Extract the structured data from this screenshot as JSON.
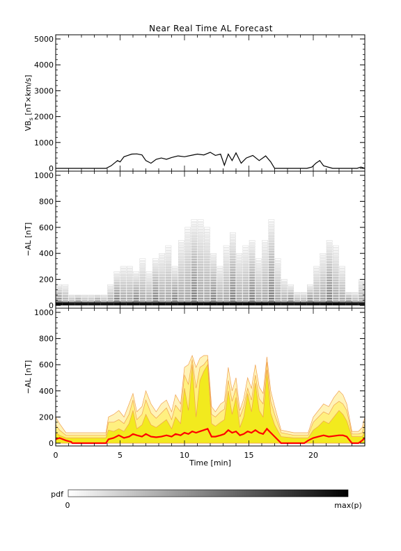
{
  "title": "Near Real Time AL Forecast",
  "chart_data": [
    {
      "type": "line",
      "ylabel_main": "VB",
      "ylabel_sub": "s",
      "ylabel_rest": " [nT×km/s]",
      "ylim": [
        0,
        5000
      ],
      "yticks": [
        "0",
        "1000",
        "2000",
        "3000",
        "4000",
        "5000"
      ],
      "xlim": [
        0,
        24
      ],
      "series": [
        {
          "color": "#000000",
          "x": [
            0,
            3.9,
            4.3,
            4.8,
            5.0,
            5.3,
            5.6,
            5.9,
            6.3,
            6.7,
            7.0,
            7.4,
            7.8,
            8.2,
            8.6,
            9.0,
            9.5,
            10.0,
            10.5,
            11.0,
            11.5,
            12.0,
            12.4,
            12.8,
            13.1,
            13.4,
            13.7,
            14.0,
            14.4,
            14.8,
            15.3,
            15.8,
            16.3,
            16.7,
            17.0,
            17.5,
            18.0,
            18.5,
            19.0,
            19.5,
            19.9,
            20.2,
            20.5,
            20.8,
            21.5,
            23.4,
            23.7,
            24
          ],
          "y": [
            0,
            0,
            100,
            300,
            250,
            450,
            500,
            550,
            560,
            520,
            300,
            200,
            350,
            400,
            350,
            420,
            480,
            450,
            500,
            550,
            520,
            620,
            500,
            550,
            120,
            550,
            300,
            600,
            200,
            400,
            500,
            300,
            480,
            250,
            0,
            0,
            0,
            0,
            0,
            0,
            50,
            200,
            300,
            100,
            0,
            0,
            50,
            0
          ]
        }
      ]
    },
    {
      "type": "heatmap",
      "ylabel": "−AL [nT]",
      "ylim": [
        0,
        1000
      ],
      "yticks": [
        "0",
        "200",
        "400",
        "600",
        "800",
        "1000"
      ],
      "xlim": [
        0,
        24
      ],
      "x": [
        0,
        0.5,
        1.0,
        1.5,
        2.0,
        2.5,
        3.0,
        3.5,
        4.0,
        4.5,
        5.0,
        5.5,
        6.0,
        6.5,
        7.0,
        7.5,
        8.0,
        8.5,
        9.0,
        9.5,
        10.0,
        10.5,
        11.0,
        11.5,
        12.0,
        12.5,
        13.0,
        13.5,
        14.0,
        14.5,
        15.0,
        15.5,
        16.0,
        16.5,
        17.0,
        17.5,
        18.0,
        18.5,
        19.0,
        19.5,
        20.0,
        20.5,
        21.0,
        21.5,
        22.0,
        22.5,
        23.0,
        23.5
      ],
      "baseline": [
        0.95,
        0.95,
        0.9,
        0.9,
        0.9,
        0.9,
        0.9,
        0.9,
        0.9,
        0.92,
        0.9,
        0.92,
        0.92,
        0.92,
        0.92,
        0.92,
        0.95,
        0.92,
        0.92,
        0.95,
        0.95,
        0.95,
        0.95,
        0.95,
        0.95,
        0.95,
        0.95,
        0.95,
        0.95,
        0.95,
        0.95,
        0.95,
        0.95,
        0.95,
        0.92,
        0.9,
        0.9,
        0.9,
        0.9,
        0.9,
        0.92,
        0.92,
        0.95,
        0.95,
        0.92,
        0.9,
        0.9,
        0.9
      ],
      "spread": [
        150,
        150,
        80,
        80,
        80,
        80,
        80,
        80,
        150,
        250,
        300,
        300,
        250,
        350,
        250,
        350,
        400,
        450,
        300,
        500,
        600,
        650,
        650,
        600,
        400,
        300,
        450,
        550,
        400,
        450,
        500,
        350,
        500,
        650,
        350,
        200,
        150,
        100,
        100,
        150,
        300,
        400,
        500,
        450,
        300,
        100,
        100,
        200
      ],
      "colorbar_label": "pdf",
      "colorbar_min": "0",
      "colorbar_max": "max(p)"
    },
    {
      "type": "area",
      "ylabel": "−AL [nT]",
      "xlabel": "Time [min]",
      "ylim": [
        0,
        1000
      ],
      "yticks": [
        "0",
        "200",
        "400",
        "600",
        "800",
        "1000"
      ],
      "xlim": [
        0,
        24
      ],
      "xticks": [
        "0",
        "5",
        "10",
        "15",
        "20"
      ],
      "x": [
        0,
        0.3,
        0.8,
        1.2,
        1.3,
        2.0,
        3.0,
        3.9,
        4.1,
        4.5,
        4.9,
        5.3,
        5.7,
        6.0,
        6.3,
        6.7,
        7.0,
        7.4,
        7.8,
        8.2,
        8.6,
        9.0,
        9.3,
        9.7,
        10.0,
        10.3,
        10.6,
        10.9,
        11.2,
        11.5,
        11.8,
        12.1,
        12.4,
        12.8,
        13.1,
        13.4,
        13.7,
        14.0,
        14.3,
        14.6,
        14.9,
        15.2,
        15.5,
        15.8,
        16.1,
        16.4,
        16.7,
        17.0,
        17.5,
        18.5,
        19.3,
        19.6,
        20.0,
        20.4,
        20.8,
        21.2,
        21.6,
        22.0,
        22.3,
        22.6,
        23.0,
        23.5,
        23.8,
        24
      ],
      "outer": [
        200,
        150,
        80,
        80,
        80,
        80,
        80,
        80,
        200,
        220,
        250,
        200,
        300,
        380,
        240,
        280,
        400,
        300,
        240,
        300,
        330,
        240,
        370,
        300,
        580,
        600,
        670,
        580,
        650,
        670,
        670,
        280,
        240,
        300,
        320,
        580,
        400,
        500,
        250,
        340,
        500,
        420,
        600,
        430,
        380,
        660,
        400,
        280,
        100,
        80,
        80,
        80,
        200,
        250,
        300,
        280,
        350,
        400,
        370,
        300,
        90,
        90,
        120,
        200
      ],
      "middle": [
        140,
        100,
        60,
        60,
        60,
        60,
        60,
        60,
        160,
        160,
        180,
        150,
        220,
        330,
        180,
        220,
        330,
        230,
        190,
        230,
        270,
        180,
        290,
        240,
        520,
        450,
        640,
        420,
        580,
        600,
        640,
        220,
        200,
        240,
        260,
        480,
        320,
        420,
        200,
        280,
        420,
        330,
        520,
        340,
        300,
        620,
        320,
        220,
        80,
        60,
        60,
        60,
        160,
        200,
        240,
        220,
        290,
        320,
        300,
        250,
        70,
        70,
        80,
        150
      ],
      "inner": [
        80,
        60,
        40,
        40,
        40,
        40,
        40,
        40,
        100,
        90,
        110,
        90,
        150,
        250,
        110,
        140,
        220,
        140,
        120,
        150,
        180,
        110,
        200,
        150,
        420,
        250,
        600,
        200,
        480,
        550,
        600,
        150,
        130,
        160,
        180,
        400,
        220,
        350,
        120,
        200,
        380,
        240,
        460,
        250,
        200,
        560,
        230,
        140,
        50,
        40,
        40,
        40,
        100,
        130,
        170,
        150,
        200,
        250,
        220,
        170,
        50,
        50,
        50,
        90
      ],
      "median": [
        30,
        40,
        20,
        10,
        0,
        0,
        0,
        0,
        30,
        40,
        60,
        40,
        50,
        70,
        60,
        50,
        70,
        50,
        45,
        50,
        60,
        50,
        70,
        60,
        80,
        70,
        90,
        80,
        90,
        100,
        110,
        50,
        50,
        60,
        70,
        100,
        80,
        90,
        60,
        70,
        90,
        80,
        100,
        80,
        70,
        110,
        80,
        50,
        0,
        0,
        0,
        20,
        40,
        50,
        60,
        50,
        55,
        60,
        60,
        50,
        0,
        0,
        20,
        40
      ],
      "colors": {
        "outer": "#fff3b8",
        "middle": "#fff080",
        "inner": "#f2ea1e",
        "band_edge": "#f0a050",
        "median": "#ff0000"
      }
    }
  ]
}
